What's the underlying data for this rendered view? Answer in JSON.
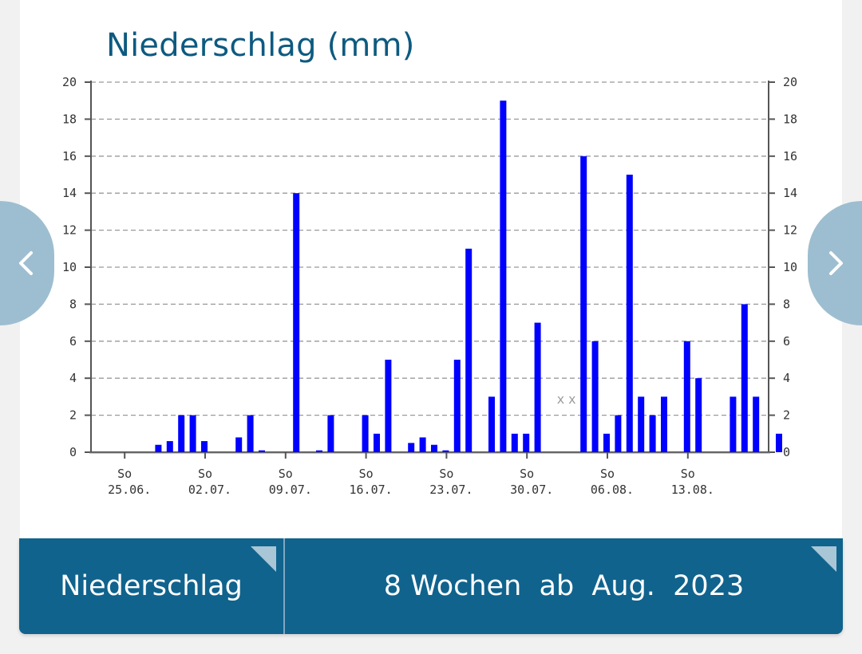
{
  "page": {
    "title": "Niederschlag (mm)"
  },
  "navigation": {
    "prev_icon": "chevron-left-icon",
    "next_icon": "chevron-right-icon"
  },
  "controls": {
    "type_label": "Niederschlag",
    "period_label": "8 Wochen  ab  Aug.  2023"
  },
  "colors": {
    "bar": "#0000ff",
    "accent": "#0d5a80",
    "bottom_bar": "#10638d",
    "nav_button": "#9dbed0"
  },
  "chart_data": {
    "type": "bar",
    "ylim": [
      0,
      20
    ],
    "y_ticks": [
      "0",
      "2",
      "4",
      "6",
      "8",
      "10",
      "12",
      "14",
      "16",
      "18",
      "20"
    ],
    "grid": true,
    "x_tick_labels": [
      {
        "day": "So",
        "date": "25.06."
      },
      {
        "day": "So",
        "date": "02.07."
      },
      {
        "day": "So",
        "date": "09.07."
      },
      {
        "day": "So",
        "date": "16.07."
      },
      {
        "day": "So",
        "date": "23.07."
      },
      {
        "day": "So",
        "date": "30.07."
      },
      {
        "day": "So",
        "date": "06.08."
      },
      {
        "day": "So",
        "date": "13.08."
      }
    ],
    "start_date": "2023-06-24",
    "values": [
      0,
      0,
      0,
      0.4,
      0.6,
      2,
      2,
      0.6,
      0,
      0,
      0.8,
      2,
      0.1,
      0,
      0,
      14,
      0,
      0.1,
      2,
      0,
      0,
      2,
      1,
      5,
      0,
      0.5,
      0.8,
      0.4,
      0.1,
      5,
      11,
      0,
      3,
      19,
      1,
      1,
      7,
      0,
      null,
      null,
      16,
      6,
      1,
      2,
      15,
      3,
      2,
      3,
      0,
      6,
      4,
      0,
      0,
      3,
      8,
      3,
      0,
      1
    ],
    "missing_marker": "x"
  }
}
